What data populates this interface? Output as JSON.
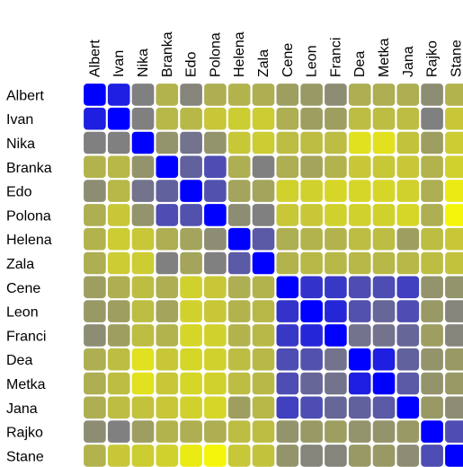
{
  "chart_data": {
    "type": "heatmap",
    "title": "",
    "labels": [
      "Albert",
      "Ivan",
      "Nika",
      "Branka",
      "Edo",
      "Polona",
      "Helena",
      "Zala",
      "Cene",
      "Leon",
      "Franci",
      "Dea",
      "Metka",
      "Jana",
      "Rajko",
      "Stane"
    ],
    "color_scale": {
      "low": "#0000ff",
      "mid": "#808080",
      "high": "#ffff00"
    },
    "color_domain": [
      0,
      1
    ],
    "matrix": [
      [
        0.0,
        0.12,
        0.5,
        0.7,
        0.52,
        0.68,
        0.7,
        0.68,
        0.62,
        0.6,
        0.55,
        0.68,
        0.68,
        0.68,
        0.55,
        0.7
      ],
      [
        0.12,
        0.0,
        0.5,
        0.72,
        0.72,
        0.78,
        0.8,
        0.8,
        0.68,
        0.62,
        0.62,
        0.74,
        0.74,
        0.74,
        0.5,
        0.78
      ],
      [
        0.5,
        0.5,
        0.0,
        0.58,
        0.45,
        0.58,
        0.78,
        0.8,
        0.74,
        0.74,
        0.74,
        0.88,
        0.88,
        0.76,
        0.62,
        0.8
      ],
      [
        0.7,
        0.72,
        0.58,
        0.0,
        0.38,
        0.3,
        0.68,
        0.5,
        0.68,
        0.64,
        0.7,
        0.78,
        0.78,
        0.78,
        0.7,
        0.82
      ],
      [
        0.55,
        0.72,
        0.45,
        0.38,
        0.0,
        0.32,
        0.64,
        0.64,
        0.82,
        0.82,
        0.84,
        0.84,
        0.84,
        0.82,
        0.68,
        0.92
      ],
      [
        0.68,
        0.78,
        0.58,
        0.3,
        0.32,
        0.0,
        0.55,
        0.5,
        0.78,
        0.78,
        0.82,
        0.82,
        0.82,
        0.84,
        0.68,
        0.96
      ],
      [
        0.7,
        0.8,
        0.78,
        0.68,
        0.64,
        0.55,
        0.0,
        0.35,
        0.68,
        0.7,
        0.7,
        0.74,
        0.74,
        0.62,
        0.74,
        0.78
      ],
      [
        0.68,
        0.8,
        0.8,
        0.5,
        0.64,
        0.5,
        0.35,
        0.0,
        0.7,
        0.72,
        0.72,
        0.72,
        0.72,
        0.72,
        0.74,
        0.76
      ],
      [
        0.62,
        0.68,
        0.74,
        0.68,
        0.82,
        0.78,
        0.68,
        0.7,
        0.0,
        0.2,
        0.22,
        0.3,
        0.3,
        0.25,
        0.58,
        0.58
      ],
      [
        0.6,
        0.62,
        0.74,
        0.64,
        0.82,
        0.78,
        0.7,
        0.72,
        0.2,
        0.0,
        0.15,
        0.32,
        0.4,
        0.3,
        0.6,
        0.52
      ],
      [
        0.55,
        0.62,
        0.74,
        0.7,
        0.84,
        0.82,
        0.7,
        0.72,
        0.22,
        0.15,
        0.0,
        0.45,
        0.45,
        0.4,
        0.62,
        0.52
      ],
      [
        0.68,
        0.74,
        0.88,
        0.78,
        0.84,
        0.82,
        0.74,
        0.72,
        0.3,
        0.32,
        0.45,
        0.0,
        0.12,
        0.38,
        0.58,
        0.6
      ],
      [
        0.68,
        0.74,
        0.88,
        0.78,
        0.84,
        0.82,
        0.74,
        0.72,
        0.3,
        0.4,
        0.45,
        0.12,
        0.0,
        0.35,
        0.58,
        0.6
      ],
      [
        0.68,
        0.74,
        0.76,
        0.78,
        0.82,
        0.84,
        0.62,
        0.72,
        0.25,
        0.3,
        0.4,
        0.38,
        0.35,
        0.0,
        0.6,
        0.55
      ],
      [
        0.55,
        0.5,
        0.62,
        0.7,
        0.68,
        0.68,
        0.74,
        0.74,
        0.58,
        0.6,
        0.62,
        0.58,
        0.58,
        0.6,
        0.0,
        0.3
      ],
      [
        0.7,
        0.78,
        0.8,
        0.82,
        0.92,
        0.96,
        0.78,
        0.76,
        0.58,
        0.52,
        0.52,
        0.6,
        0.6,
        0.55,
        0.3,
        0.0
      ]
    ]
  }
}
